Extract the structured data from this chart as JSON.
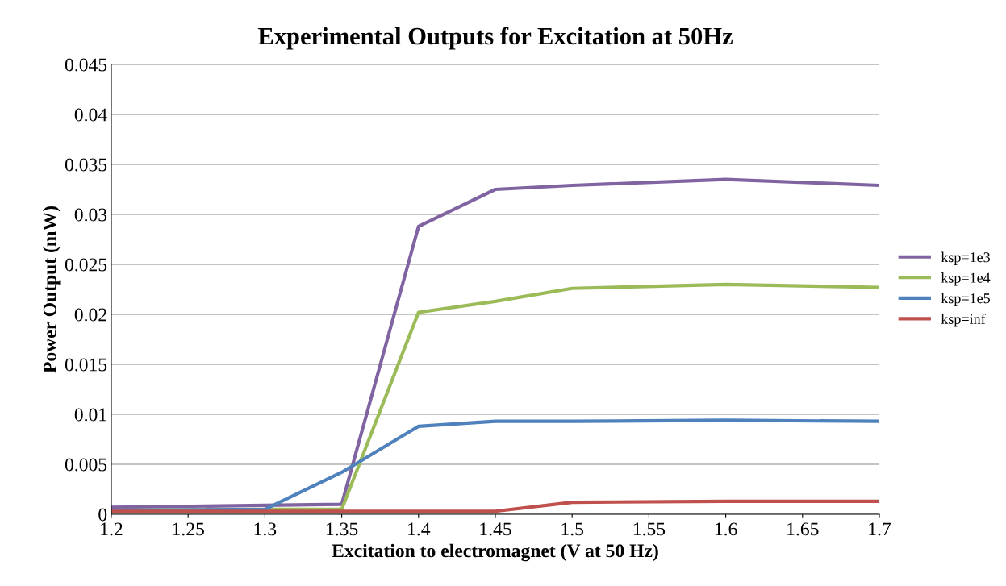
{
  "chart_data": {
    "type": "line",
    "title": "Experimental Outputs for Excitation at 50Hz",
    "xlabel": "Excitation to electromagnet (V at 50 Hz)",
    "ylabel": "Power Output (mW)",
    "x": [
      1.2,
      1.3,
      1.35,
      1.4,
      1.45,
      1.5,
      1.6,
      1.7
    ],
    "series": [
      {
        "name": "ksp=1e3",
        "color": "#8064a2",
        "values": [
          0.0007,
          0.0009,
          0.001,
          0.0288,
          0.0325,
          0.0329,
          0.0335,
          0.0329
        ]
      },
      {
        "name": "ksp=1e4",
        "color": "#9bbb59",
        "values": [
          0.0004,
          0.0005,
          0.0005,
          0.0202,
          0.0213,
          0.0226,
          0.023,
          0.0227
        ]
      },
      {
        "name": "ksp=1e5",
        "color": "#4f81bd",
        "values": [
          0.0004,
          0.0005,
          0.0042,
          0.0088,
          0.0093,
          0.0093,
          0.0094,
          0.0093
        ]
      },
      {
        "name": "ksp=inf",
        "color": "#c0504d",
        "values": [
          0.0003,
          0.0003,
          0.0003,
          0.0003,
          0.0003,
          0.0012,
          0.0013,
          0.0013
        ]
      }
    ],
    "xlim": [
      1.2,
      1.7
    ],
    "xticks": [
      1.2,
      1.25,
      1.3,
      1.35,
      1.4,
      1.45,
      1.5,
      1.55,
      1.6,
      1.65,
      1.7
    ],
    "ylim": [
      0,
      0.045
    ],
    "yticks": [
      0,
      0.005,
      0.01,
      0.015,
      0.02,
      0.025,
      0.03,
      0.035,
      0.04,
      0.045
    ],
    "grid": "y",
    "legend": "right",
    "marker": "none",
    "line_style": "solid"
  }
}
